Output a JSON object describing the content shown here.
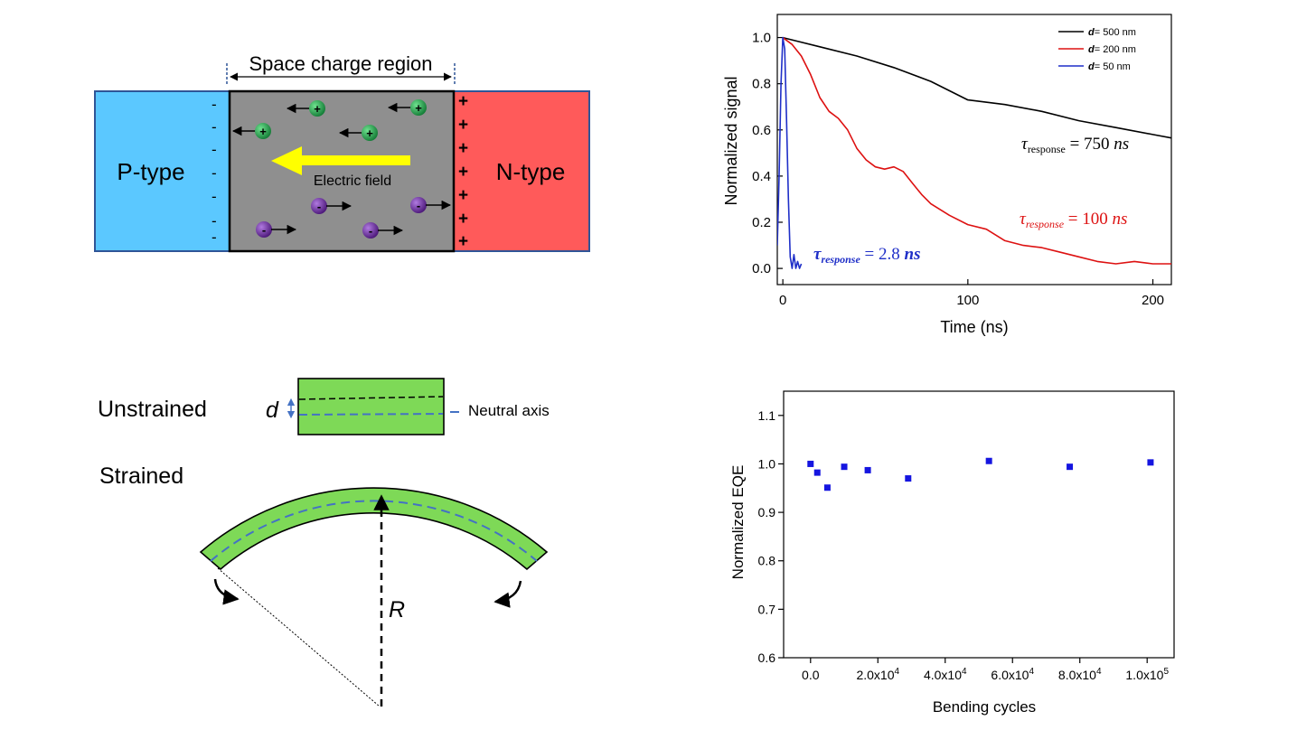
{
  "pn_diagram": {
    "region_label": "Space charge region",
    "p_label": "P-type",
    "n_label": "N-type",
    "field_label": "Electric field",
    "plus": "+",
    "minus": "-",
    "colors": {
      "p": "#5BC8FF",
      "n": "#FF5A5A",
      "region": "#8F8F8F",
      "field_arrow": "#FFFF00",
      "hole": "#1E9E4A",
      "electron": "#6A2C9A"
    }
  },
  "bend_diagram": {
    "unstrained_label": "Unstrained",
    "strained_label": "Strained",
    "d_label": "d",
    "axis_label": "Neutral axis",
    "r_label": "R",
    "colors": {
      "film": "#7ED957",
      "axis": "#4472C4"
    }
  },
  "chart_data": [
    {
      "type": "line",
      "xlabel": "Time (ns)",
      "ylabel": "Normalized signal",
      "xlim": [
        -3,
        210
      ],
      "ylim": [
        -0.07,
        1.1
      ],
      "xticks": [
        "0",
        "100",
        "200"
      ],
      "yticks": [
        "0.0",
        "0.2",
        "0.4",
        "0.6",
        "0.8",
        "1.0"
      ],
      "legend_position": "top-right",
      "series": [
        {
          "name": "d= 500 nm",
          "legend_var": "d",
          "legend_rest": "= 500 nm",
          "color": "#000000",
          "annotation": "τresponse = 750 ns",
          "annotation_parts": {
            "tau": "τ",
            "sub": "response",
            "rest": " = 750 ",
            "unit": "ns"
          },
          "x": [
            0,
            20,
            40,
            60,
            80,
            100,
            120,
            140,
            160,
            180,
            200,
            210
          ],
          "values": [
            1.0,
            0.96,
            0.92,
            0.87,
            0.81,
            0.73,
            0.71,
            0.68,
            0.64,
            0.61,
            0.58,
            0.565
          ]
        },
        {
          "name": "d= 200 nm",
          "legend_var": "d",
          "legend_rest": "= 200 nm",
          "color": "#DD1111",
          "annotation": "τresponse = 100 ns",
          "annotation_parts": {
            "tau": "τ",
            "sub": "response",
            "rest": " = 100 ",
            "unit": "ns"
          },
          "x": [
            0,
            5,
            10,
            15,
            20,
            25,
            30,
            35,
            40,
            45,
            50,
            55,
            60,
            65,
            70,
            75,
            80,
            90,
            100,
            110,
            120,
            130,
            140,
            150,
            160,
            170,
            180,
            190,
            200,
            210
          ],
          "values": [
            1.0,
            0.97,
            0.92,
            0.84,
            0.74,
            0.68,
            0.65,
            0.6,
            0.52,
            0.47,
            0.44,
            0.43,
            0.44,
            0.42,
            0.37,
            0.32,
            0.28,
            0.23,
            0.19,
            0.17,
            0.12,
            0.1,
            0.09,
            0.07,
            0.05,
            0.03,
            0.02,
            0.03,
            0.02,
            0.02
          ]
        },
        {
          "name": "d= 50 nm",
          "legend_var": "d",
          "legend_rest": "= 50 nm",
          "color": "#1F2FC8",
          "annotation": "τresponse = 2.8 ns",
          "annotation_parts": {
            "tau": "τ",
            "sub": "response",
            "rest": " = 2.8 ",
            "unit": "ns"
          },
          "x": [
            -3,
            -2,
            -1,
            0,
            1,
            2,
            3,
            4,
            5,
            6,
            7,
            8,
            9,
            10
          ],
          "values": [
            0.1,
            0.4,
            0.8,
            1.0,
            0.95,
            0.65,
            0.3,
            0.05,
            0.0,
            0.06,
            0.0,
            0.03,
            0.0,
            0.02
          ]
        }
      ]
    },
    {
      "type": "scatter",
      "xlabel": "Bending cycles",
      "ylabel": "Normalized EQE",
      "xlim": [
        -8000,
        108000
      ],
      "ylim": [
        0.6,
        1.15
      ],
      "xticks": [
        "0.0",
        "2.0x10⁴",
        "4.0x10⁴",
        "6.0x10⁴",
        "8.0x10⁴",
        "1.0x10⁵"
      ],
      "yticks": [
        "0.6",
        "0.7",
        "0.8",
        "0.9",
        "1.0",
        "1.1"
      ],
      "color": "#1515E0",
      "series": [
        {
          "x": [
            0,
            2000,
            5000,
            10000,
            17000,
            29000,
            53000,
            77000,
            101000
          ],
          "values": [
            1.0,
            0.982,
            0.951,
            0.994,
            0.987,
            0.97,
            1.006,
            0.994,
            1.003
          ]
        }
      ]
    }
  ]
}
